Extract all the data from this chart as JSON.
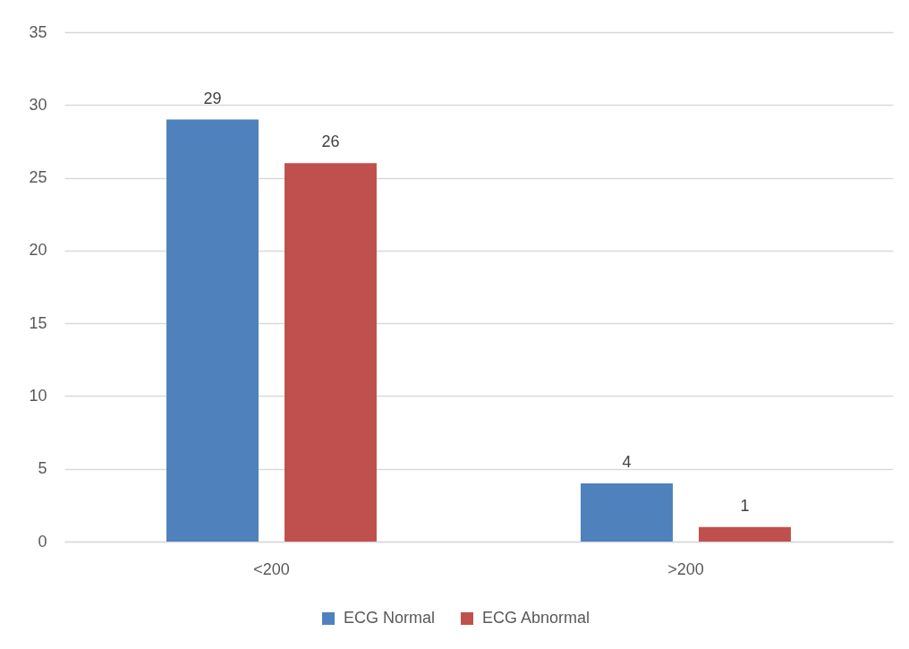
{
  "chart_data": {
    "type": "bar",
    "categories": [
      "<200",
      ">200"
    ],
    "series": [
      {
        "name": "ECG Normal",
        "color": "#4f81bd",
        "values": [
          29,
          4
        ]
      },
      {
        "name": "ECG Abnormal",
        "color": "#c0504d",
        "values": [
          26,
          1
        ]
      }
    ],
    "ylim": [
      0,
      35
    ],
    "yticks": [
      0,
      5,
      10,
      15,
      20,
      25,
      30,
      35
    ],
    "grid": "y",
    "legend": "bottom",
    "data_labels": true
  }
}
